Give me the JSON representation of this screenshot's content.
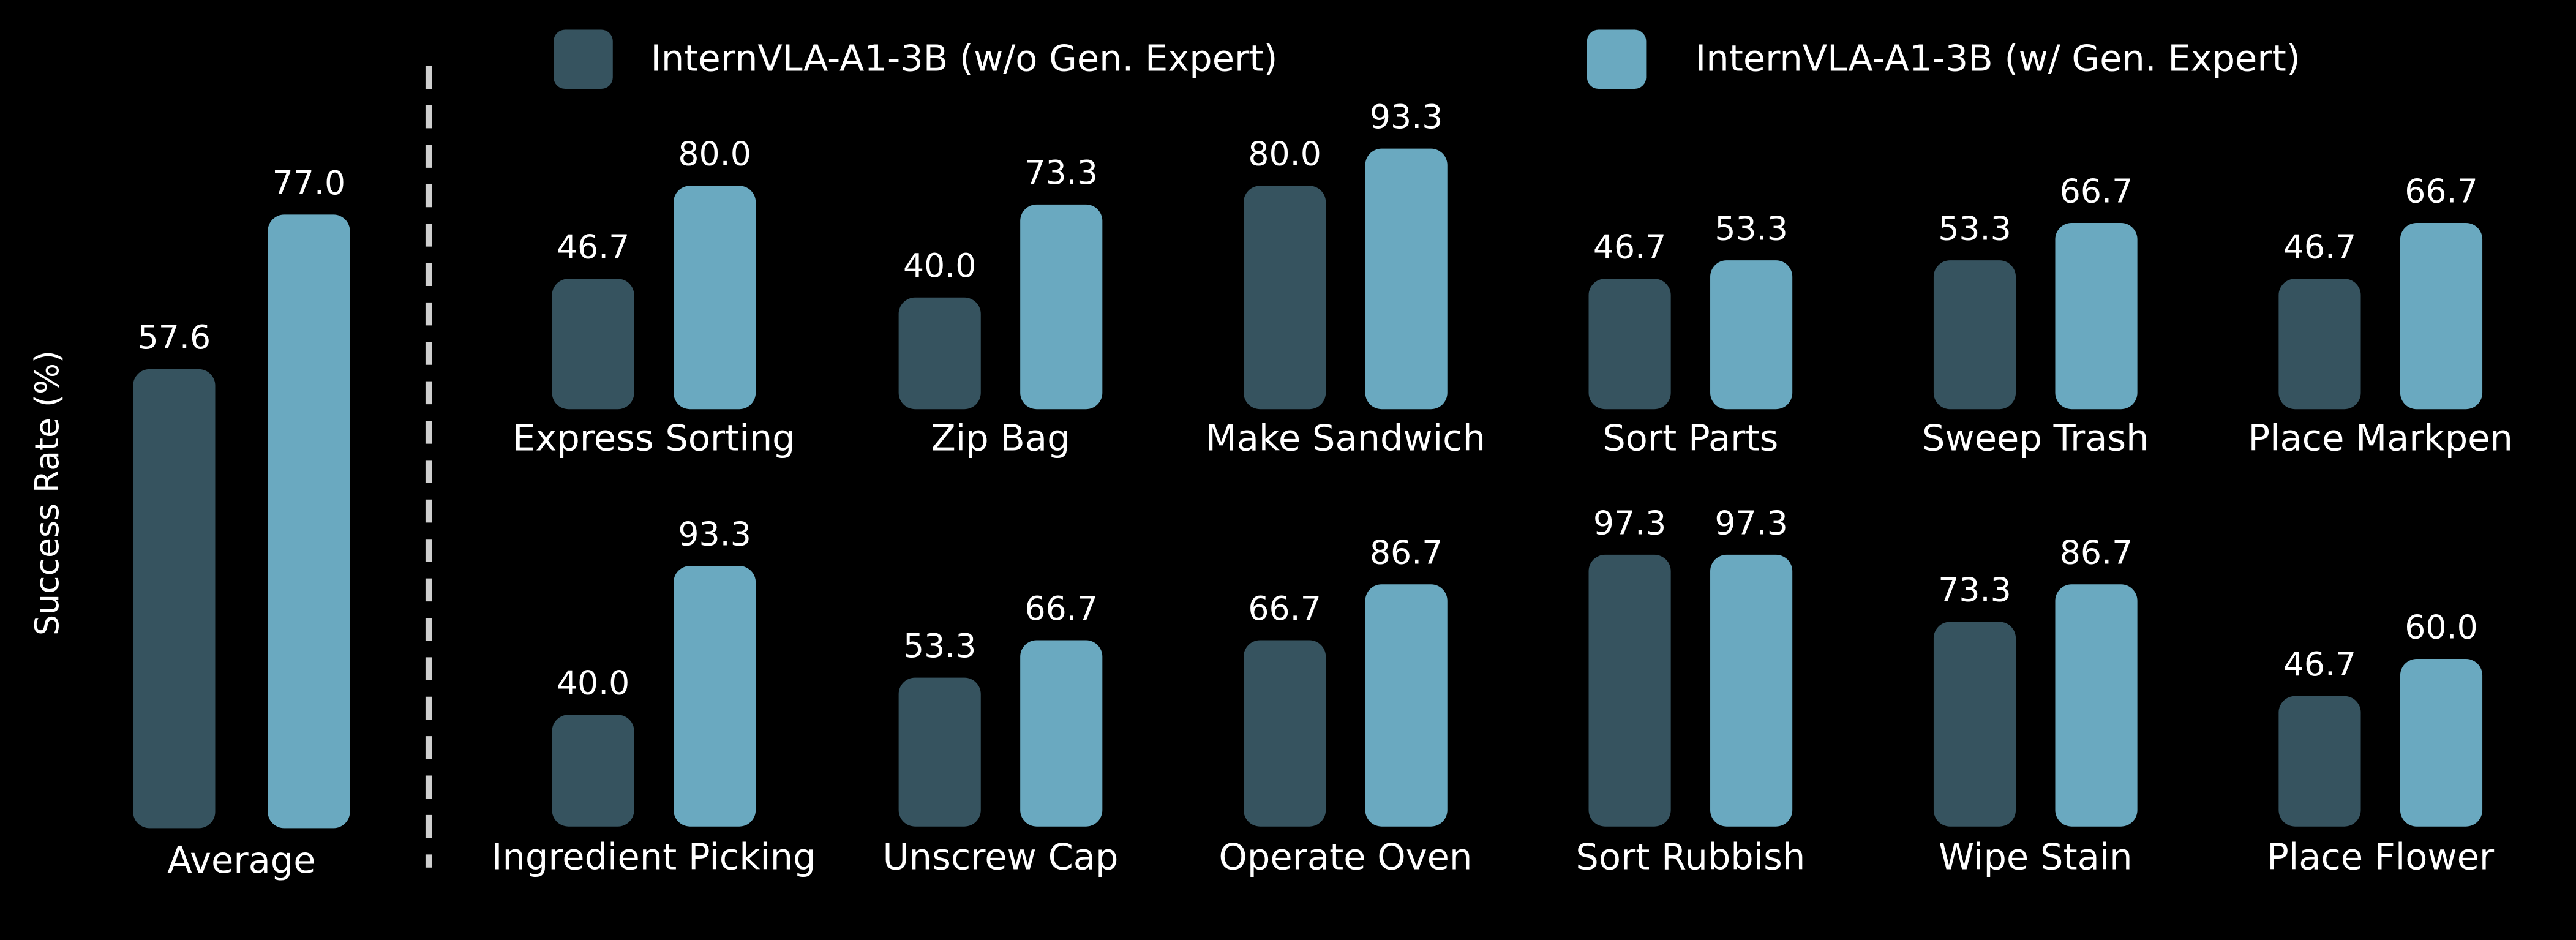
{
  "chart_data": {
    "type": "bar",
    "ylabel": "Success Rate (%)",
    "categories": [
      "Average",
      "Express Sorting",
      "Zip Bag",
      "Make Sandwich",
      "Sort Parts",
      "Sweep Trash",
      "Place Markpen",
      "Ingredient Picking",
      "Unscrew Cap",
      "Operate Oven",
      "Sort Rubbish",
      "Wipe Stain",
      "Place Flower"
    ],
    "series": [
      {
        "name": "InternVLA-A1-3B (w/o Gen. Expert)",
        "color": "#36535f",
        "values": [
          57.6,
          46.7,
          40.0,
          80.0,
          46.7,
          53.3,
          46.7,
          40.0,
          53.3,
          66.7,
          97.3,
          73.3,
          46.7
        ],
        "value_labels": [
          "57.6",
          "46.7",
          "40.0",
          "80.0",
          "46.7",
          "53.3",
          "46.7",
          "40.0",
          "53.3",
          "66.7",
          "97.3",
          "73.3",
          "46.7"
        ]
      },
      {
        "name": "InternVLA-A1-3B (w/ Gen. Expert)",
        "color": "#6aa9c0",
        "values": [
          77.0,
          80.0,
          73.3,
          93.3,
          53.3,
          66.7,
          66.7,
          93.3,
          66.7,
          86.7,
          97.3,
          86.7,
          60.0
        ],
        "value_labels": [
          "77.0",
          "80.0",
          "73.3",
          "93.3",
          "53.3",
          "66.7",
          "66.7",
          "93.3",
          "66.7",
          "86.7",
          "97.3",
          "86.7",
          "60.0"
        ]
      }
    ]
  }
}
